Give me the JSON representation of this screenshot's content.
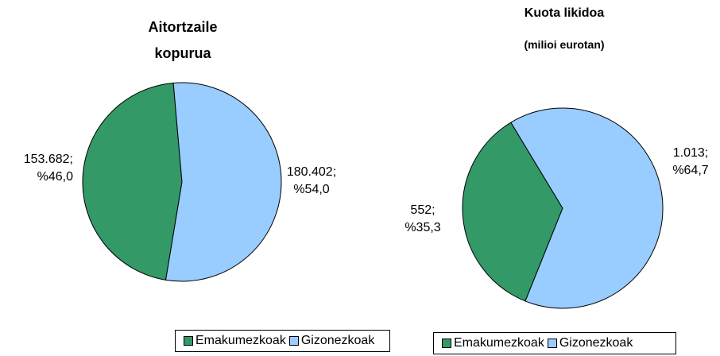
{
  "chart_data": [
    {
      "type": "pie",
      "title": "Aitortzaile kopurua",
      "categories": [
        "Emakumezkoak",
        "Gizonezkoak"
      ],
      "values": [
        153682,
        180402
      ],
      "value_labels": [
        "153.682; %46,0",
        "180.402; %54,0"
      ],
      "colors": [
        "#339966",
        "#99ccff"
      ],
      "legend": "bottom"
    },
    {
      "type": "pie",
      "title": "Kuota likidoa",
      "subtitle": "(milioi eurotan)",
      "categories": [
        "Emakumezkoak",
        "Gizonezkoak"
      ],
      "values": [
        552,
        1013
      ],
      "value_labels": [
        "552; %35,3",
        "1.013; %64,7"
      ],
      "colors": [
        "#339966",
        "#99ccff"
      ],
      "legend": "bottom"
    }
  ]
}
